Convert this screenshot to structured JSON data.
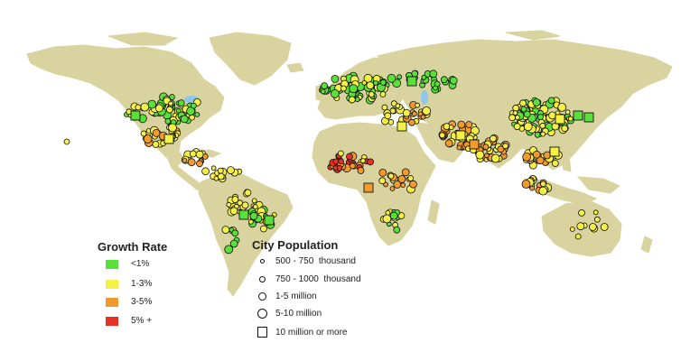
{
  "colors": {
    "ocean": "#ffffff",
    "land": "#d8d39f",
    "lake": "#8fc7e8",
    "growth_lt1": "#5ae03a",
    "growth_1_3": "#f5f045",
    "growth_3_5": "#f39a2e",
    "growth_5plus": "#e53225"
  },
  "legend": {
    "growth_title": "Growth Rate",
    "growth_items": [
      {
        "label": "<1%",
        "color": "#5ae03a"
      },
      {
        "label": "1-3%",
        "color": "#f5f045"
      },
      {
        "label": "3-5%",
        "color": "#f39a2e"
      },
      {
        "label": "5% +",
        "color": "#e53225"
      }
    ],
    "population_title": "City Population",
    "population_items": [
      {
        "label": "500 - 750  thousand",
        "symbol": "circle-xs"
      },
      {
        "label": "750 - 1000  thousand",
        "symbol": "circle-s"
      },
      {
        "label": "1-5 million",
        "symbol": "circle-m"
      },
      {
        "label": "5-10 million",
        "symbol": "circle-l"
      },
      {
        "label": "10 million or more",
        "symbol": "square"
      }
    ]
  }
}
